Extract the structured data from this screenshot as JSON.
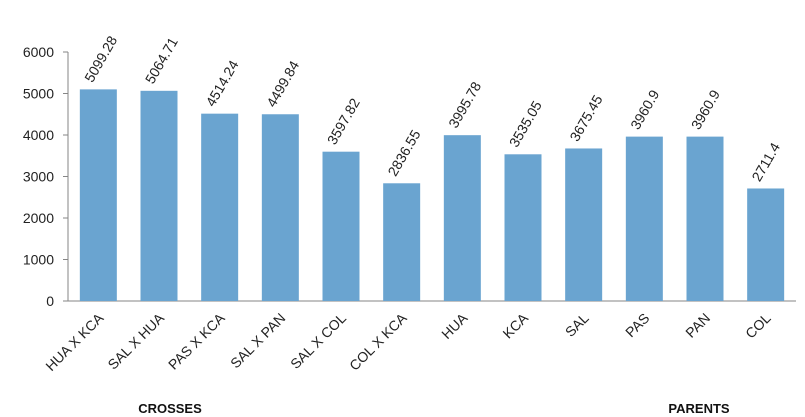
{
  "chart_data": {
    "type": "bar",
    "title": "",
    "xlabel": "",
    "ylabel": "",
    "ylim": [
      0,
      6000
    ],
    "yticks": [
      0,
      1000,
      2000,
      3000,
      4000,
      5000,
      6000
    ],
    "grid": false,
    "legend": "none",
    "bar_color": "#6aa4d0",
    "categories": [
      "HUA X KCA",
      "SAL X HUA",
      "PAS X KCA",
      "SAL X PAN",
      "SAL X COL",
      "COL X KCA",
      "HUA",
      "KCA",
      "SAL",
      "PAS",
      "PAN",
      "COL"
    ],
    "values": [
      5099.28,
      5064.71,
      4514.24,
      4499.84,
      3597.82,
      2836.55,
      3995.78,
      3535.05,
      3675.45,
      3960.9,
      3960.9,
      2711.4
    ],
    "data_labels": [
      "5099.28",
      "5064.71",
      "4514.24",
      "4499.84",
      "3597.82",
      "2836.55",
      "3995.78",
      "3535.05",
      "3675.45",
      "3960.9",
      "3960.9",
      "2711.4"
    ],
    "group_labels": [
      {
        "text": "CROSSES",
        "categories": [
          "HUA X KCA",
          "SAL X HUA",
          "PAS X KCA",
          "SAL X PAN",
          "SAL X COL",
          "COL X KCA"
        ]
      },
      {
        "text": "PARENTS",
        "categories": [
          "HUA",
          "KCA",
          "SAL",
          "PAS",
          "PAN",
          "COL"
        ]
      }
    ]
  }
}
